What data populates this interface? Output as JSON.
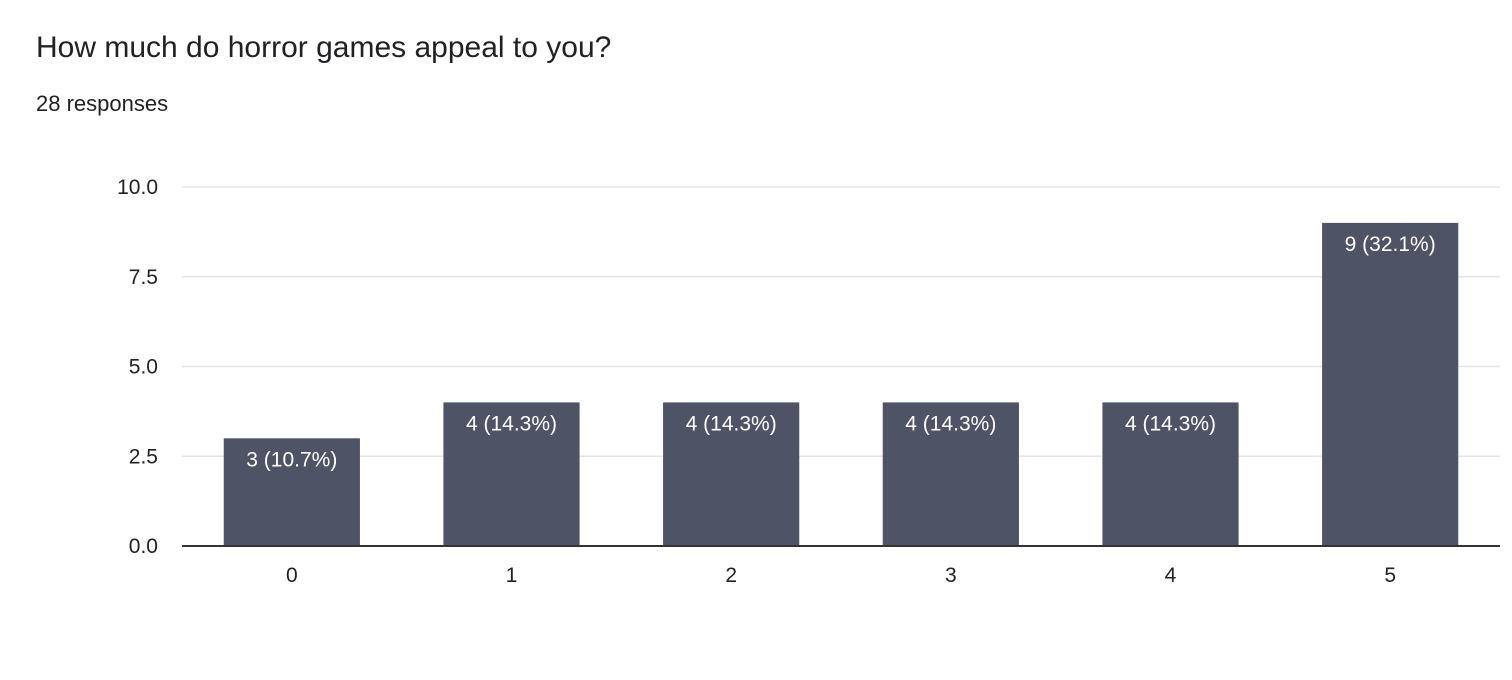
{
  "title": "How much do horror games appeal to you?",
  "responses_label": "28 responses",
  "colors": {
    "bar": "#4f5366",
    "grid": "#e6e6e6",
    "axis": "#333333"
  },
  "chart_data": {
    "type": "bar",
    "categories": [
      "0",
      "1",
      "2",
      "3",
      "4",
      "5"
    ],
    "values": [
      3,
      4,
      4,
      4,
      4,
      9
    ],
    "data_labels": [
      "3 (10.7%)",
      "4 (14.3%)",
      "4 (14.3%)",
      "4 (14.3%)",
      "4 (14.3%)",
      "9 (32.1%)"
    ],
    "yticks": [
      "0.0",
      "2.5",
      "5.0",
      "7.5",
      "10.0"
    ],
    "ylim": [
      0,
      10
    ],
    "grid": true,
    "legend": "none"
  }
}
